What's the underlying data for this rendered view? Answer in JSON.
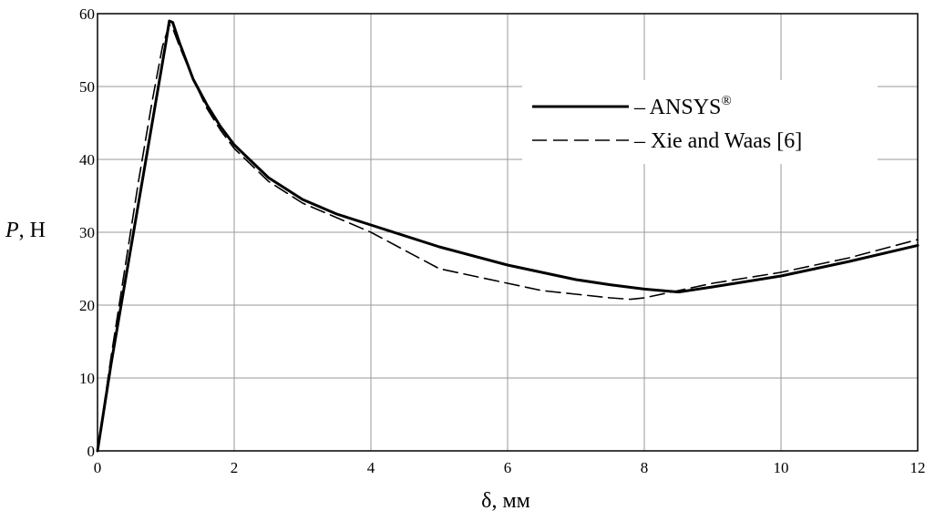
{
  "chart_data": {
    "type": "line",
    "xlabel": "δ, мм",
    "ylabel": "P",
    "ylabel_unit": ", Н",
    "xlim": [
      0,
      12
    ],
    "ylim": [
      0,
      60
    ],
    "xticks": [
      0,
      2,
      4,
      6,
      8,
      10,
      12
    ],
    "yticks": [
      0,
      10,
      20,
      30,
      40,
      50,
      60
    ],
    "grid": true,
    "legend_position": "top-right",
    "series": [
      {
        "name": "– ANSYS",
        "name_sup": "®",
        "style": "solid",
        "color": "#000000",
        "x": [
          0,
          0.2,
          0.4,
          0.6,
          0.8,
          1.0,
          1.05,
          1.1,
          1.2,
          1.4,
          1.6,
          1.8,
          2.0,
          2.5,
          3.0,
          3.5,
          4.0,
          5.0,
          6.0,
          7.0,
          7.5,
          8.0,
          8.5,
          9.0,
          10.0,
          11.0,
          12.0
        ],
        "y": [
          0,
          12,
          23,
          34,
          45,
          56,
          59,
          58.8,
          56,
          51,
          47.5,
          44.5,
          42,
          37.5,
          34.5,
          32.5,
          31,
          28,
          25.5,
          23.5,
          22.8,
          22.2,
          21.8,
          22.5,
          24,
          26,
          28.2
        ]
      },
      {
        "name": "– Xie and Waas [6]",
        "style": "dashed",
        "color": "#000000",
        "x": [
          0,
          0.2,
          0.4,
          0.6,
          0.8,
          0.95,
          1.0,
          1.05,
          1.1,
          1.2,
          1.4,
          1.6,
          1.8,
          2.0,
          2.5,
          3.0,
          3.5,
          4.0,
          4.5,
          5.0,
          6.0,
          6.5,
          7.0,
          7.5,
          7.8,
          8.0,
          8.5,
          9.0,
          10.0,
          11.0,
          12.0
        ],
        "y": [
          0,
          13,
          25,
          37,
          48,
          55.5,
          57,
          58.5,
          58,
          55.5,
          51,
          47,
          44,
          41.5,
          37,
          34,
          32,
          30,
          27.5,
          25,
          23,
          22,
          21.5,
          21,
          20.8,
          21,
          22,
          23,
          24.5,
          26.5,
          29
        ]
      }
    ]
  }
}
